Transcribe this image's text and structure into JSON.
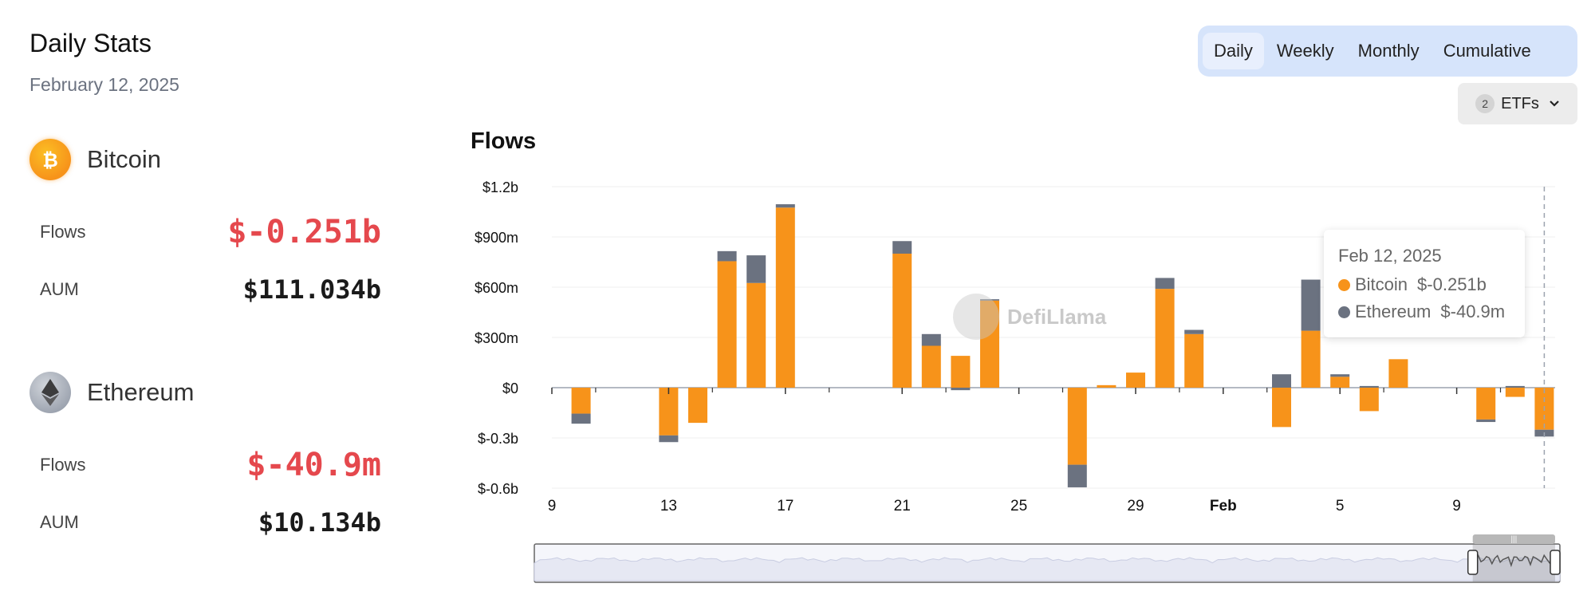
{
  "header": {
    "title": "Daily Stats",
    "date": "February 12, 2025"
  },
  "assets": [
    {
      "name": "Bitcoin",
      "flows_label": "Flows",
      "flows": "$-0.251b",
      "aum_label": "AUM",
      "aum": "$111.034b"
    },
    {
      "name": "Ethereum",
      "flows_label": "Flows",
      "flows": "$-40.9m",
      "aum_label": "AUM",
      "aum": "$10.134b"
    }
  ],
  "tabs": [
    "Daily",
    "Weekly",
    "Monthly",
    "Cumulative"
  ],
  "active_tab": "Daily",
  "etf_button": {
    "count": "2",
    "label": "ETFs"
  },
  "tooltip": {
    "date": "Feb 12, 2025",
    "bitcoin_label": "Bitcoin",
    "bitcoin_value": "$-0.251b",
    "ethereum_label": "Ethereum",
    "ethereum_value": "$-40.9m"
  },
  "watermark": "DefiLlama",
  "colors": {
    "bitcoin": "#f7931a",
    "ethereum": "#6b7280",
    "negative": "#e5484d"
  },
  "chart_data": {
    "type": "bar",
    "stacked": true,
    "title": "Flows",
    "y_ticks": [
      "$1.2b",
      "$900m",
      "$600m",
      "$300m",
      "$0",
      "$-0.3b",
      "$-0.6b"
    ],
    "ylim": [
      -600,
      1200
    ],
    "y_unit": "millions USD",
    "x_ticks": [
      {
        "label": "9",
        "day": 0
      },
      {
        "label": "13",
        "day": 4
      },
      {
        "label": "17",
        "day": 8
      },
      {
        "label": "21",
        "day": 12
      },
      {
        "label": "25",
        "day": 16
      },
      {
        "label": "29",
        "day": 20
      },
      {
        "label": "Feb",
        "day": 23,
        "bold": true
      },
      {
        "label": "5",
        "day": 27
      },
      {
        "label": "9",
        "day": 31
      }
    ],
    "day_range": [
      0,
      34
    ],
    "series_names": [
      "Bitcoin",
      "Ethereum"
    ],
    "bars": [
      {
        "day": 1,
        "date": "Jan 10",
        "bitcoin": -155,
        "ethereum": -60
      },
      {
        "day": 4,
        "date": "Jan 13",
        "bitcoin": -285,
        "ethereum": -40
      },
      {
        "day": 5,
        "date": "Jan 14",
        "bitcoin": -210,
        "ethereum": 0
      },
      {
        "day": 6,
        "date": "Jan 15",
        "bitcoin": 755,
        "ethereum": 60
      },
      {
        "day": 7,
        "date": "Jan 16",
        "bitcoin": 625,
        "ethereum": 165
      },
      {
        "day": 8,
        "date": "Jan 17",
        "bitcoin": 1075,
        "ethereum": 20
      },
      {
        "day": 12,
        "date": "Jan 21",
        "bitcoin": 800,
        "ethereum": 75
      },
      {
        "day": 13,
        "date": "Jan 22",
        "bitcoin": 250,
        "ethereum": 70
      },
      {
        "day": 14,
        "date": "Jan 23",
        "bitcoin": 190,
        "ethereum": -15
      },
      {
        "day": 15,
        "date": "Jan 24",
        "bitcoin": 520,
        "ethereum": 8
      },
      {
        "day": 18,
        "date": "Jan 27",
        "bitcoin": -460,
        "ethereum": -135
      },
      {
        "day": 19,
        "date": "Jan 28",
        "bitcoin": 15,
        "ethereum": 0
      },
      {
        "day": 20,
        "date": "Jan 29",
        "bitcoin": 90,
        "ethereum": 0
      },
      {
        "day": 21,
        "date": "Jan 30",
        "bitcoin": 590,
        "ethereum": 65
      },
      {
        "day": 22,
        "date": "Jan 31",
        "bitcoin": 320,
        "ethereum": 25
      },
      {
        "day": 25,
        "date": "Feb 3",
        "bitcoin": -235,
        "ethereum": 80
      },
      {
        "day": 26,
        "date": "Feb 4",
        "bitcoin": 340,
        "ethereum": 305
      },
      {
        "day": 27,
        "date": "Feb 5",
        "bitcoin": 65,
        "ethereum": 15
      },
      {
        "day": 28,
        "date": "Feb 6",
        "bitcoin": -140,
        "ethereum": 10
      },
      {
        "day": 29,
        "date": "Feb 7",
        "bitcoin": 170,
        "ethereum": 0
      },
      {
        "day": 32,
        "date": "Feb 10",
        "bitcoin": -190,
        "ethereum": -15
      },
      {
        "day": 33,
        "date": "Feb 11",
        "bitcoin": -55,
        "ethereum": 10
      },
      {
        "day": 34,
        "date": "Feb 12",
        "bitcoin": -251,
        "ethereum": -40.9
      }
    ],
    "grid": true,
    "range_selector": {
      "start_fraction": 0.915,
      "end_fraction": 1.0
    }
  }
}
